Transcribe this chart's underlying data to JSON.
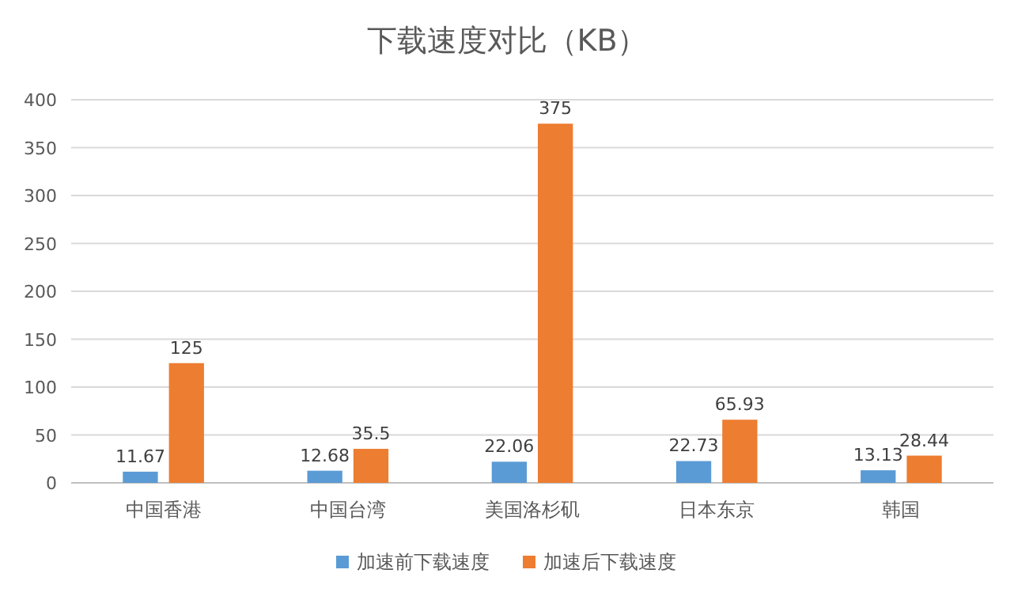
{
  "chart_data": {
    "type": "bar",
    "title": "下载速度对比（KB）",
    "categories": [
      "中国香港",
      "中国台湾",
      "美国洛杉矶",
      "日本东京",
      "韩国"
    ],
    "series": [
      {
        "name": "加速前下载速度",
        "color": "#5b9bd5",
        "values": [
          11.67,
          12.68,
          22.06,
          22.73,
          13.13
        ]
      },
      {
        "name": "加速后下载速度",
        "color": "#ed7d31",
        "values": [
          125,
          35.5,
          375,
          65.93,
          28.44
        ]
      }
    ],
    "ylim": [
      0,
      400
    ],
    "yticks": [
      0,
      50,
      100,
      150,
      200,
      250,
      300,
      350,
      400
    ],
    "grid": "y",
    "legend": "bottom",
    "data_labels": true
  }
}
